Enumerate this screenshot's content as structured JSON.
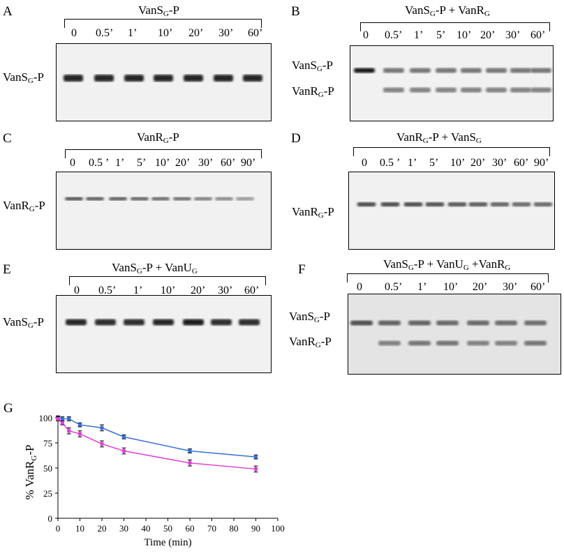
{
  "panels": [
    {
      "letter": "A",
      "title_main": "VanS",
      "title_sub": "G",
      "title_suffix": "-P",
      "times": [
        "0",
        "0.5’",
        "1’",
        "10’",
        "20’",
        "30’",
        "60’"
      ],
      "row_labels": [
        {
          "main": "VanS",
          "sub": "G",
          "suffix": "-P"
        }
      ]
    },
    {
      "letter": "B",
      "title_main": "VanS",
      "title_sub": "G",
      "title_suffix": "-P + VanR",
      "title_sub2": "G",
      "times": [
        "0",
        "0.5’",
        "1’",
        "5’",
        "10’",
        "20’",
        "30’",
        "60’"
      ],
      "row_labels": [
        {
          "main": "VanS",
          "sub": "G",
          "suffix": "-P"
        },
        {
          "main": "VanR",
          "sub": "G",
          "suffix": "-P"
        }
      ]
    },
    {
      "letter": "C",
      "title_main": "VanR",
      "title_sub": "G",
      "title_suffix": "-P",
      "times": [
        "0",
        "0.5 ’",
        "1’",
        "5’",
        "10’",
        "20’",
        "30’",
        "60’",
        "90’"
      ],
      "row_labels": [
        {
          "main": "VanR",
          "sub": "G",
          "suffix": "-P"
        }
      ]
    },
    {
      "letter": "D",
      "title_main": "VanR",
      "title_sub": "G",
      "title_suffix": "-P + VanS",
      "title_sub2": "G",
      "times": [
        "0",
        "0.5 ’",
        "1’",
        "5’",
        "10’",
        "20’",
        "30’",
        "60’",
        "90’"
      ],
      "row_labels": [
        {
          "main": "VanR",
          "sub": "G",
          "suffix": "-P"
        }
      ]
    },
    {
      "letter": "E",
      "title_main": "VanS",
      "title_sub": "G",
      "title_suffix": "-P + VanU",
      "title_sub2": "G",
      "times": [
        "0",
        "0.5’",
        "1’",
        "10’",
        "20’",
        "30’",
        "60’"
      ],
      "row_labels": [
        {
          "main": "VanS",
          "sub": "G",
          "suffix": "-P"
        }
      ]
    },
    {
      "letter": "F",
      "title_main": "VanS",
      "title_sub": "G",
      "title_suffix": "-P + VanU",
      "title_sub2": "G",
      "title_suffix2": " +VanR",
      "title_sub3": "G",
      "times": [
        "0",
        "0.5’",
        "1’",
        "10’",
        "20’",
        "30’",
        "60’"
      ],
      "row_labels": [
        {
          "main": "VanS",
          "sub": "G",
          "suffix": "-P"
        },
        {
          "main": "VanR",
          "sub": "G",
          "suffix": "-P"
        }
      ]
    }
  ],
  "chart_data": {
    "letter": "G",
    "type": "line",
    "xlabel": "Time (min)",
    "ylabel_main": "% VanR",
    "ylabel_sub": "G",
    "ylabel_suffix": "-P",
    "xlim": [
      0,
      100
    ],
    "ylim": [
      0,
      100
    ],
    "xticks": [
      0,
      10,
      20,
      30,
      40,
      50,
      60,
      70,
      80,
      90,
      100
    ],
    "yticks": [
      0,
      25,
      50,
      75,
      100
    ],
    "grid": false,
    "series": [
      {
        "color": "#3a6fd8",
        "x": [
          0,
          2,
          5,
          10,
          20,
          30,
          60,
          90
        ],
        "y": [
          100,
          99,
          99,
          93,
          90,
          81,
          67,
          61
        ],
        "err": [
          2,
          2,
          2,
          2,
          3,
          2,
          2,
          2
        ]
      },
      {
        "color": "#e040d8",
        "x": [
          0,
          2,
          5,
          10,
          20,
          30,
          60,
          90
        ],
        "y": [
          99,
          95,
          87,
          84,
          74,
          67,
          55,
          49
        ],
        "err": [
          2,
          2,
          3,
          3,
          3,
          3,
          3,
          3
        ]
      }
    ]
  }
}
